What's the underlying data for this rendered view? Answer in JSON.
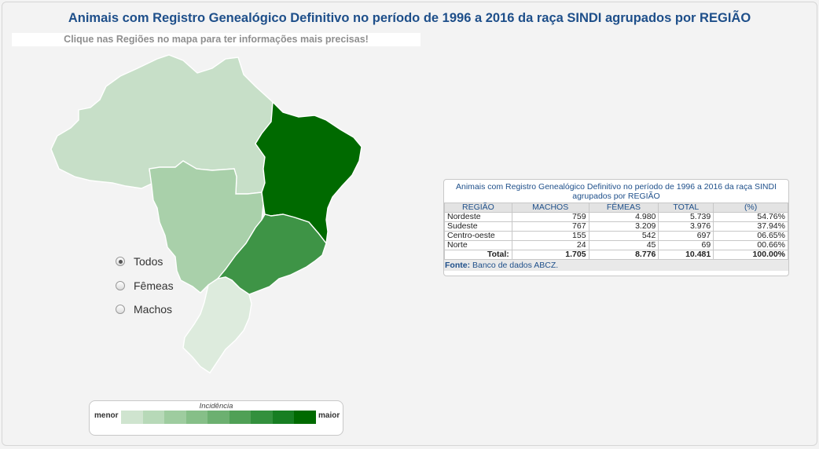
{
  "header": {
    "title": "Animais com Registro Genealógico Definitivo no período de 1996 a 2016 da raça SINDI agrupados por REGIÃO",
    "hint": "Clique nas Regiões no mapa para ter informações mais precisas!"
  },
  "map": {
    "regions": [
      {
        "name": "Norte",
        "color": "#c7dfc8"
      },
      {
        "name": "Centro-oeste",
        "color": "#a9d0aa"
      },
      {
        "name": "Nordeste",
        "color": "#006a00"
      },
      {
        "name": "Sudeste",
        "color": "#3e9446"
      },
      {
        "name": "Sul",
        "color": "#ddebdd"
      }
    ]
  },
  "filters": {
    "options": [
      {
        "label": "Todos",
        "selected": true
      },
      {
        "label": "Fêmeas",
        "selected": false
      },
      {
        "label": "Machos",
        "selected": false
      }
    ]
  },
  "legend": {
    "title": "Incidência",
    "min_label": "menor",
    "max_label": "maior",
    "colors": [
      "#cfe4cf",
      "#b7d9b8",
      "#9ecc9f",
      "#86bf88",
      "#6cb070",
      "#50a056",
      "#33903d",
      "#177e22",
      "#006a00"
    ]
  },
  "table": {
    "title": "Animais com Registro Genealógico Definitivo no período de 1996 a 2016 da raça SINDI agrupados por REGIÃO",
    "headers": [
      "REGIÃO",
      "MACHOS",
      "FÊMEAS",
      "TOTAL",
      "(%)"
    ],
    "rows": [
      [
        "Nordeste",
        "759",
        "4.980",
        "5.739",
        "54.76%"
      ],
      [
        "Sudeste",
        "767",
        "3.209",
        "3.976",
        "37.94%"
      ],
      [
        "Centro-oeste",
        "155",
        "542",
        "697",
        "06.65%"
      ],
      [
        "Norte",
        "24",
        "45",
        "69",
        "00.66%"
      ]
    ],
    "total": [
      "Total:",
      "1.705",
      "8.776",
      "10.481",
      "100.00%"
    ],
    "source_label": "Fonte:",
    "source_text": "Banco de dados ABCZ."
  }
}
